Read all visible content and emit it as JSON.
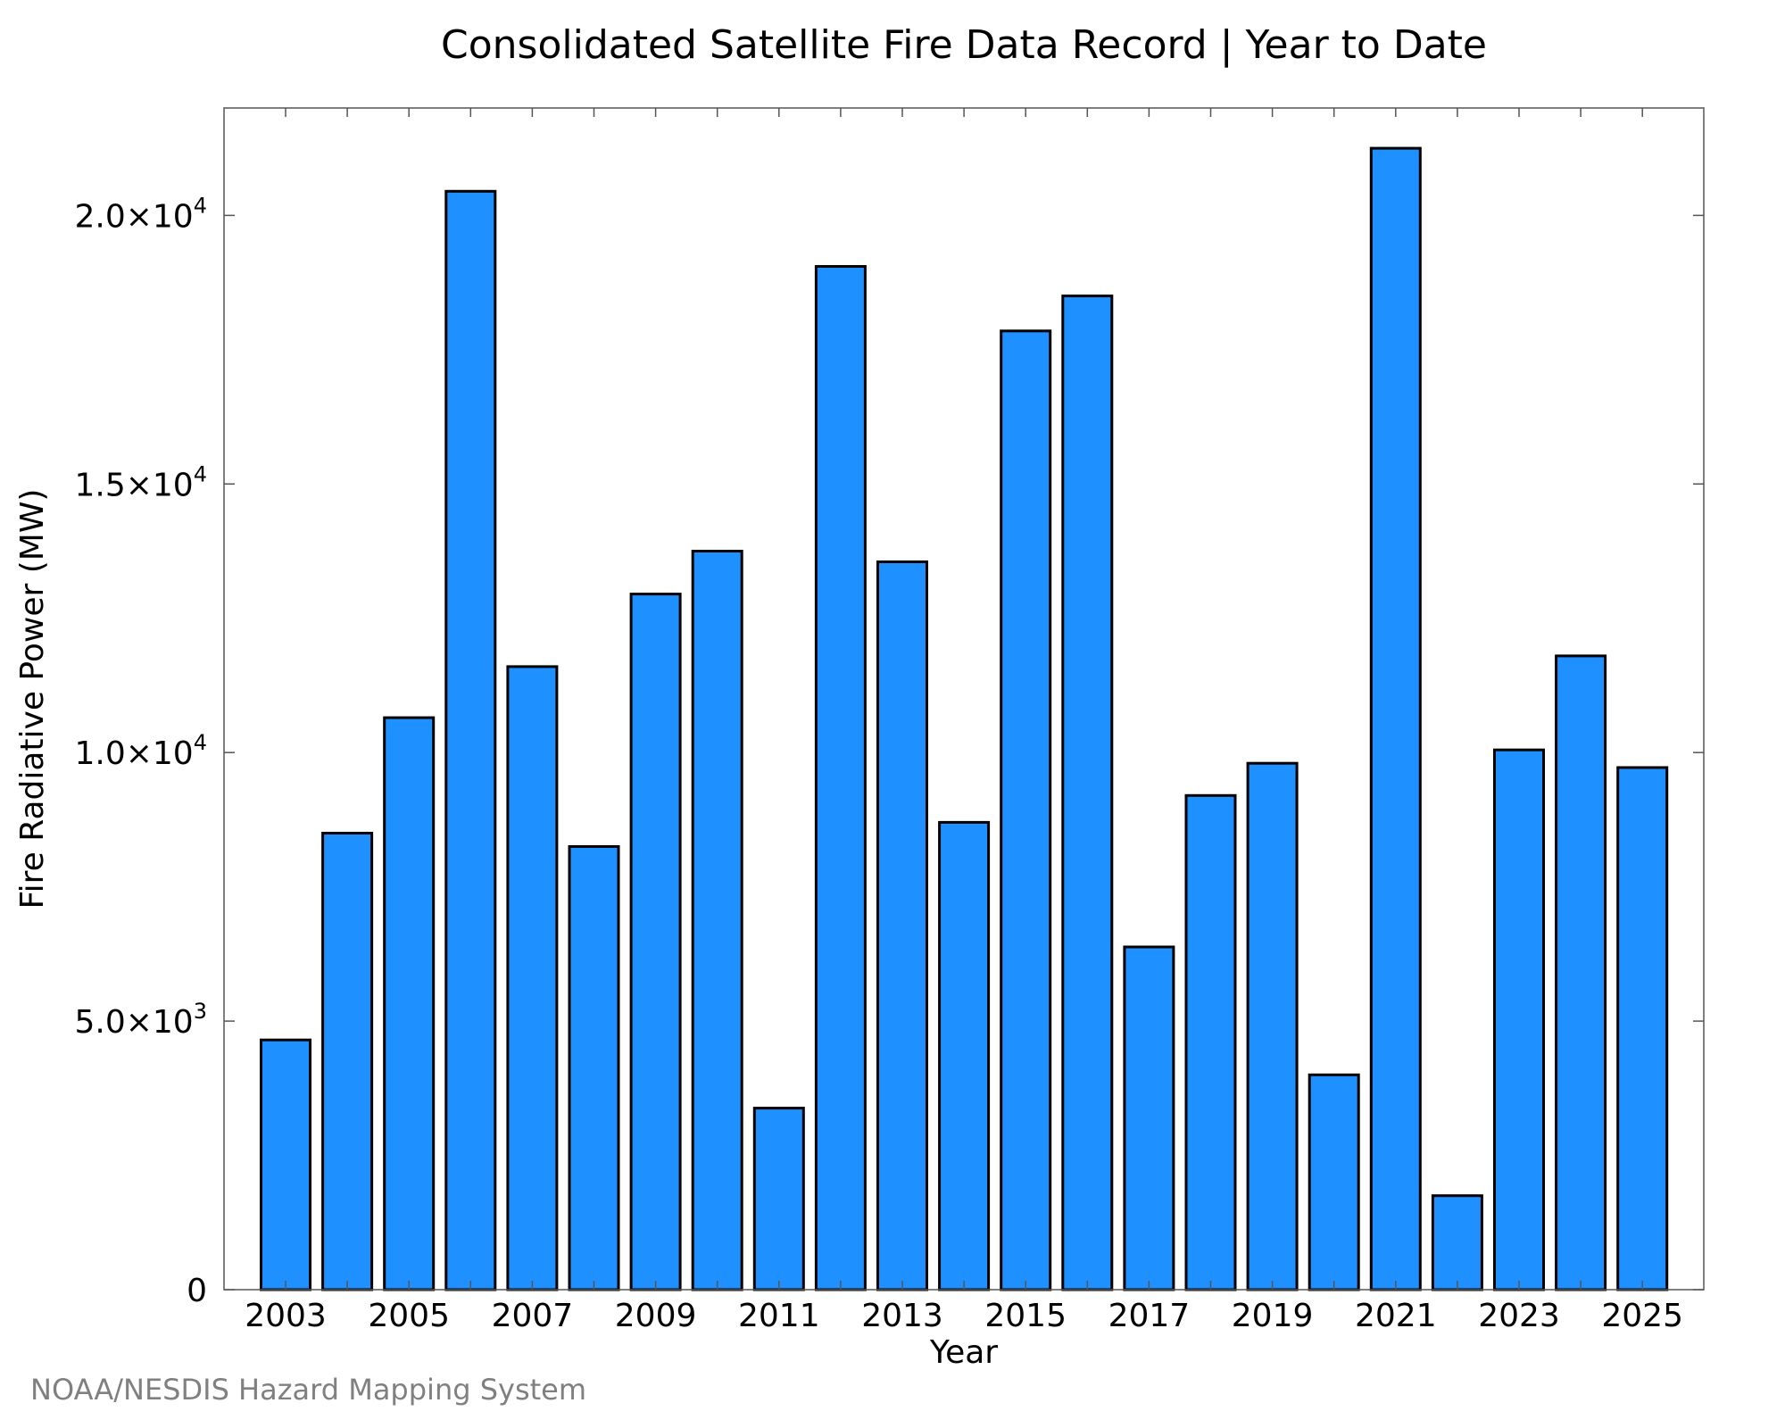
{
  "chart_data": {
    "type": "bar",
    "title": "Consolidated Satellite Fire Data Record | Year to Date",
    "xlabel": "Year",
    "ylabel": "Fire Radiative Power (MW)",
    "ylim": [
      0,
      22000
    ],
    "yticks": [
      {
        "value": 0,
        "mantissa": "0",
        "exponent": ""
      },
      {
        "value": 5000,
        "mantissa": "5.0×10",
        "exponent": "3"
      },
      {
        "value": 10000,
        "mantissa": "1.0×10",
        "exponent": "4"
      },
      {
        "value": 15000,
        "mantissa": "1.5×10",
        "exponent": "4"
      },
      {
        "value": 20000,
        "mantissa": "2.0×10",
        "exponent": "4"
      }
    ],
    "xtick_labels": [
      "2003",
      "2005",
      "2007",
      "2009",
      "2011",
      "2013",
      "2015",
      "2017",
      "2019",
      "2021",
      "2023",
      "2025"
    ],
    "categories": [
      "2003",
      "2004",
      "2005",
      "2006",
      "2007",
      "2008",
      "2009",
      "2010",
      "2011",
      "2012",
      "2013",
      "2014",
      "2015",
      "2016",
      "2017",
      "2018",
      "2019",
      "2020",
      "2021",
      "2022",
      "2023",
      "2024",
      "2025"
    ],
    "values": [
      4650,
      8500,
      10650,
      20450,
      11600,
      8250,
      12950,
      13750,
      3380,
      19050,
      13550,
      8700,
      17850,
      18500,
      6380,
      9200,
      9800,
      4000,
      21250,
      1750,
      10050,
      11800,
      9720
    ],
    "bar_color": "#1E90FF",
    "grid": false
  },
  "credit": "NOAA/NESDIS Hazard Mapping System"
}
